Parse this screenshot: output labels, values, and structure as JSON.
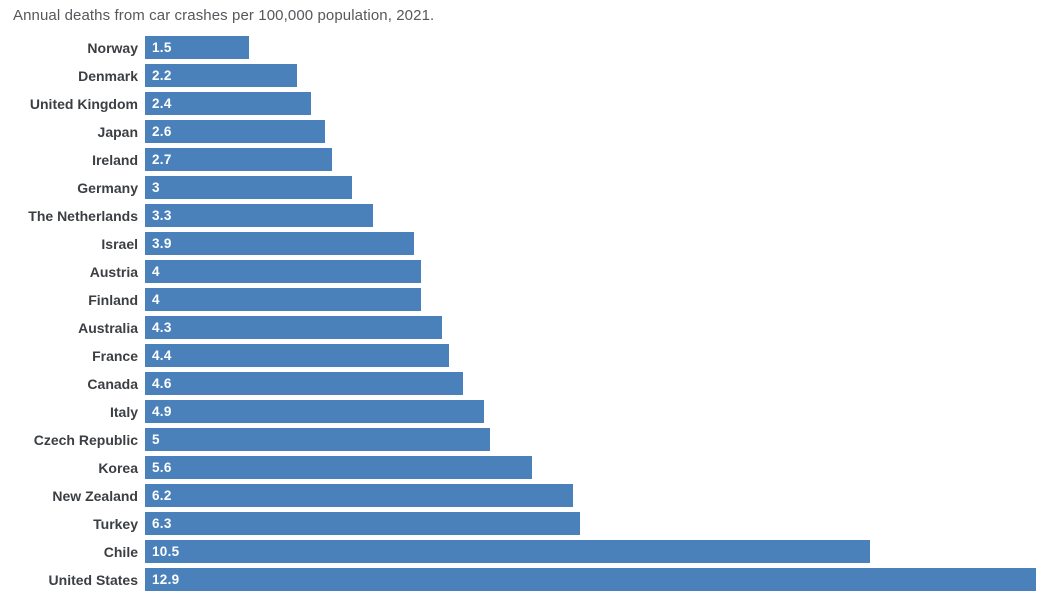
{
  "chart_data": {
    "type": "bar",
    "orientation": "horizontal",
    "title": "Annual deaths from car crashes per 100,000 population, 2021.",
    "categories": [
      "Norway",
      "Denmark",
      "United Kingdom",
      "Japan",
      "Ireland",
      "Germany",
      "The Netherlands",
      "Israel",
      "Austria",
      "Finland",
      "Australia",
      "France",
      "Canada",
      "Italy",
      "Czech Republic",
      "Korea",
      "New Zealand",
      "Turkey",
      "Chile",
      "United States"
    ],
    "values": [
      1.5,
      2.2,
      2.4,
      2.6,
      2.7,
      3,
      3.3,
      3.9,
      4,
      4,
      4.3,
      4.4,
      4.6,
      4.9,
      5,
      5.6,
      6.2,
      6.3,
      10.5,
      12.9
    ],
    "value_labels": [
      "1.5",
      "2.2",
      "2.4",
      "2.6",
      "2.7",
      "3",
      "3.3",
      "3.9",
      "4",
      "4",
      "4.3",
      "4.4",
      "4.6",
      "4.9",
      "5",
      "5.6",
      "6.2",
      "6.3",
      "10.5",
      "12.9"
    ],
    "xlabel": "",
    "ylabel": "",
    "xlim": [
      0,
      13.1
    ],
    "grid": false,
    "legend": false,
    "bar_color": "#4a81ba",
    "title_color": "#55585c",
    "label_color": "#3b3e42",
    "value_label_color": "#ffffff"
  }
}
